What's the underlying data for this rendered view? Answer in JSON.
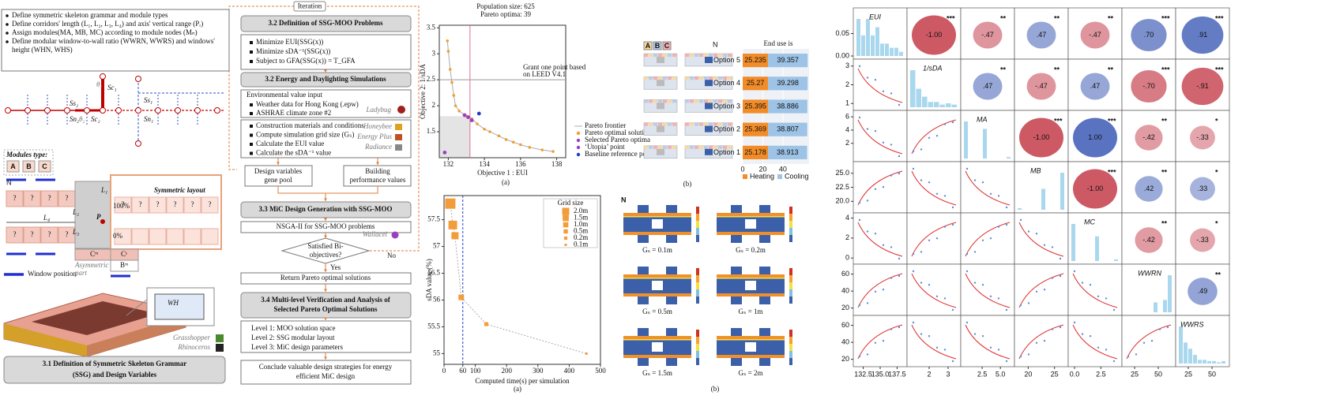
{
  "iteration": "Iteration",
  "left": {
    "bullets": [
      [
        "Define symmetric skeleton grammar and module types"
      ],
      [
        "Define corridors' length (L₁, L₂, L₃, L₄) and axis' vertical range (Pᵣ)"
      ],
      [
        "Assign modules(MA, MB, MC) according to module nodes (Mₙ)"
      ],
      [
        "Define modular window-to-wall ratio (WWRN, WWRS) and windows'",
        "height (WHN, WHS)"
      ]
    ],
    "skeleton_labels": {
      "theta1": "θ₁",
      "theta2": "θ₂",
      "sc1": "Sc₁",
      "sc2": "Sc₂",
      "ss1": "Ss₁",
      "ss2": "Ss₂",
      "sn1": "Sn₁",
      "sn2": "Sn₂"
    },
    "modules_type": "Modules type:",
    "modules": [
      "A",
      "B",
      "C"
    ],
    "north": "N",
    "symmetric_layout": "Symmetric layout",
    "layout_labels": {
      "l1": "L₁",
      "l2": "L₂",
      "l3": "L₃",
      "l4": "L₄",
      "p": "P",
      "top": "100%",
      "bottom": "0%",
      "cm": "Cᵐ",
      "cs": "Cˢ",
      "bm": "Bᵐ"
    },
    "question": "?",
    "asymmetric_part": [
      "Asymmetric",
      "part"
    ],
    "window_position": "Window position",
    "wh": "WH",
    "tools": [
      "Grasshopper",
      "Rhinoceros"
    ],
    "caption": [
      "3.1 Definition of Symmetric Skeleton Grammar",
      "(SSG) and Design Variables"
    ]
  },
  "flow": {
    "h1": "3.2 Definition of SSG-MOO Problems",
    "problem": [
      "Minimize EUI(SSG(x))",
      "Minimize sDA⁻¹(SSG(x))",
      "Subject to GFA(SSG(x)) = T_GFA"
    ],
    "h2": "3.2 Energy and Daylighting Simulations",
    "env_title": "Environmental value input",
    "env": [
      "Weather data for Hong Kong (.epw)",
      "ASHRAE climate zone #2"
    ],
    "env_tool": "Ladybug",
    "sim": [
      "Construction materials and conditions",
      "Compute simulation grid size (Gₛ)",
      "Calculate the EUI value",
      "Calculate the sDA⁻¹ value"
    ],
    "sim_tools": [
      "Honeybee",
      "Energy Plus",
      "Radiance"
    ],
    "gene_pool": [
      "Design variables",
      "gene pool"
    ],
    "performance": [
      "Building",
      "performance values"
    ],
    "h3": "3.3 MiC Design Generation with SSG-MOO",
    "nsga": "NSGA-II for SSG-MOO problems",
    "nsga_tool": "Wallacei",
    "decision": [
      "Satisfied Bi-",
      "objectives?"
    ],
    "yes": "Yes",
    "no": "No",
    "return": "Return Pareto optimal solutions",
    "h4": [
      "3.4 Multi-level Verification and Analysis of",
      "Selected Pareto Optimal Solutions"
    ],
    "levels": [
      "Level 1: MOO solution space",
      "Level 2: SSG modular layout",
      "Level 3: MiC design parameters"
    ],
    "conclude": [
      "Conclude valuable design strategies for energy",
      "efficient MiC design"
    ]
  },
  "pareto": {
    "type": "scatter",
    "title": "Population size: 625",
    "subtitle": "Pareto optima: 39",
    "x_label": "Objective 1 : EUI",
    "y_label": "Objective 2: 1/sDA",
    "xlim": [
      131.5,
      138.5
    ],
    "xticks": [
      132,
      134,
      136,
      138
    ],
    "ylim": [
      1.0,
      3.55
    ],
    "yticks": [
      1.5,
      2,
      2.5,
      3,
      3.5
    ],
    "reference_x": 133.2,
    "reference_y": 2.5,
    "shaded_region": {
      "x": [
        131.5,
        133.2
      ],
      "y": [
        1.0,
        1.8
      ]
    },
    "annotation": [
      "Grant one point based",
      "on LEED V4.1"
    ],
    "series": [
      {
        "name": "Pareto frontier",
        "color": "#aaaaaa",
        "style": "line",
        "x": [
          131.95,
          132.0,
          132.1,
          132.2,
          132.3,
          132.4,
          132.6,
          133.0,
          133.3,
          133.6,
          134.0,
          134.3,
          134.8,
          135.2,
          135.6,
          136.0,
          136.5,
          137.2,
          137.8
        ],
        "y": [
          3.25,
          3.05,
          2.7,
          2.45,
          2.2,
          2.0,
          1.9,
          1.8,
          1.75,
          1.65,
          1.55,
          1.5,
          1.42,
          1.35,
          1.3,
          1.25,
          1.2,
          1.15,
          1.12
        ]
      },
      {
        "name": "Pareto optimal solution",
        "color": "#f0a030",
        "style": "point",
        "x": [
          131.95,
          132.0,
          132.1,
          132.2,
          132.3,
          132.4,
          132.6,
          133.0,
          133.3,
          133.6,
          134.0,
          134.3,
          134.8,
          135.2,
          135.6,
          136.0,
          136.5,
          137.2,
          137.8
        ],
        "y": [
          3.25,
          3.05,
          2.7,
          2.45,
          2.2,
          2.0,
          1.9,
          1.8,
          1.75,
          1.65,
          1.55,
          1.5,
          1.42,
          1.35,
          1.3,
          1.25,
          1.2,
          1.15,
          1.12
        ]
      },
      {
        "name": "Selected Pareto optima",
        "color": "#9b3fbf",
        "style": "point",
        "x": [
          132.9,
          133.1,
          133.3
        ],
        "y": [
          1.82,
          1.78,
          1.72
        ]
      },
      {
        "name": "‘Utopia’ point",
        "color": "#9b3fbf",
        "style": "point",
        "x": [
          131.8
        ],
        "y": [
          1.1
        ]
      },
      {
        "name": "Baseline reference point",
        "color": "#1f3fbf",
        "style": "point",
        "x": [
          133.7
        ],
        "y": [
          1.85
        ]
      }
    ],
    "caption": "(a)"
  },
  "end_use": {
    "type": "bar",
    "title": "End use is",
    "modules": [
      "A",
      "B",
      "C"
    ],
    "north": "N",
    "categories": [
      "Option 5",
      "Option 4",
      "Option 3",
      "Option 2",
      "Option 1"
    ],
    "series": [
      {
        "name": "Heating",
        "color": "#f28c28",
        "values": [
          25.235,
          25.27,
          25.395,
          25.369,
          25.178
        ]
      },
      {
        "name": "Cooling",
        "color": "#9dc3e6",
        "values": [
          39.357,
          39.298,
          38.886,
          38.807,
          38.913
        ]
      }
    ],
    "xlim": [
      0,
      66
    ],
    "xticks": [
      0,
      20,
      40
    ],
    "caption": "(b)"
  },
  "sda_time": {
    "type": "scatter",
    "x_label": "Computed time(s) per simulation",
    "y_label": "sDA value (%)",
    "xlim": [
      0,
      500
    ],
    "xticks": [
      0,
      60,
      100,
      200,
      300,
      400,
      500
    ],
    "ylim": [
      54.8,
      57.95
    ],
    "yticks": [
      55,
      55.5,
      56,
      56.5,
      57,
      57.5
    ],
    "reference_x": 60,
    "legend_title": "Grid size",
    "color": "#f39c3a",
    "labels": [
      "2.0m",
      "1.5m",
      "1.0m",
      "0.5m",
      "0.2m",
      "0.1m"
    ],
    "x": [
      20,
      28,
      35,
      55,
      135,
      455
    ],
    "y": [
      57.8,
      57.4,
      57.2,
      56.05,
      55.55,
      55.0
    ],
    "caption": "(a)"
  },
  "grid_maps": {
    "north": "N",
    "labels": [
      "Gₛ = 0.1m",
      "Gₛ = 0.2m",
      "Gₛ = 0.5m",
      "Gₛ = 1m",
      "Gₛ = 1.5m",
      "Gₛ = 2m"
    ],
    "caption": "(b)"
  },
  "pair_plot": {
    "variables": [
      {
        "name": "EUI",
        "range": [
          131.5,
          138.5
        ],
        "x_ticks": [
          {
            "value": 132.5,
            "label": "132.5"
          },
          {
            "value": 135,
            "label": "135.0"
          },
          {
            "value": 137.5,
            "label": "137.5"
          }
        ],
        "y_range": [
          0,
          0.1
        ],
        "y_ticks": [
          {
            "value": 0,
            "label": "0.00"
          },
          0.05
        ],
        "hist": [
          0.09,
          0.05,
          0.09,
          0.05,
          0.07,
          0.03,
          0.03,
          0.02,
          0.02,
          0.01
        ]
      },
      {
        "name": "1/sDA",
        "range": [
          1.0,
          3.5
        ],
        "x_ticks": [
          2,
          3
        ],
        "y_range": [
          0.8,
          3.2
        ],
        "y_ticks": [
          1,
          2,
          3
        ],
        "hist": [
          28,
          14,
          8,
          4,
          4,
          2,
          3,
          2
        ]
      },
      {
        "name": "MA",
        "range": [
          0,
          6.5
        ],
        "x_ticks": [
          2.5,
          {
            "value": 5,
            "label": "5.0"
          }
        ],
        "y_range": [
          -0.3,
          6.5
        ],
        "y_ticks": [
          2,
          4,
          6
        ],
        "hist": [
          25,
          0,
          0,
          0,
          20,
          0,
          0,
          0,
          0,
          1
        ]
      },
      {
        "name": "MB",
        "range": [
          18,
          27
        ],
        "x_ticks": [
          20,
          25
        ],
        "y_range": [
          18.5,
          26.5
        ],
        "y_ticks": [
          {
            "value": 20,
            "label": "20.0"
          },
          22.5,
          {
            "value": 25,
            "label": "25.0"
          }
        ],
        "hist": [
          1,
          0,
          0,
          0,
          0,
          13,
          0,
          0,
          0,
          23
        ]
      },
      {
        "name": "MC",
        "range": [
          -0.3,
          4.2
        ],
        "x_ticks": [
          {
            "value": 0,
            "label": "0.0"
          },
          2.5
        ],
        "y_range": [
          -0.3,
          4.2
        ],
        "y_ticks": [
          0,
          2,
          4
        ],
        "hist": [
          24,
          0,
          0,
          0,
          0,
          16,
          0,
          0,
          0,
          1
        ]
      },
      {
        "name": "WWRN",
        "range": [
          15,
          65
        ],
        "x_ticks": [
          25,
          50
        ],
        "y_range": [
          15,
          68
        ],
        "y_ticks": [
          20,
          40,
          60
        ],
        "hist": [
          0,
          0,
          0,
          0,
          0,
          0,
          8,
          0,
          10,
          30
        ]
      },
      {
        "name": "WWRS",
        "range": [
          15,
          65
        ],
        "x_ticks": [
          25,
          50
        ],
        "y_range": [
          15,
          68
        ],
        "y_ticks": [
          20,
          40,
          60
        ],
        "hist": [
          30,
          17,
          12,
          7,
          3,
          3,
          2,
          2,
          1,
          2
        ]
      }
    ],
    "correlations": [
      [
        {
          "value": -1.0,
          "label": "-1.00",
          "stars": "***"
        },
        {
          "value": -0.47,
          "label": "-.47",
          "stars": "**"
        },
        {
          "value": 0.47,
          "label": ".47",
          "stars": "**"
        },
        {
          "value": -0.47,
          "label": "-.47",
          "stars": "**"
        },
        {
          "value": 0.7,
          "label": ".70",
          "stars": "***"
        },
        {
          "value": 0.91,
          "label": ".91",
          "stars": "***"
        }
      ],
      [
        {
          "value": 0.47,
          "label": ".47",
          "stars": "**"
        },
        {
          "value": -0.47,
          "label": "-.47",
          "stars": "**"
        },
        {
          "value": 0.47,
          "label": ".47",
          "stars": "**"
        },
        {
          "value": -0.7,
          "label": "-.70",
          "stars": "***"
        },
        {
          "value": -0.91,
          "label": "-.91",
          "stars": "***"
        }
      ],
      [
        {
          "value": -1.0,
          "label": "-1.00",
          "stars": "***"
        },
        {
          "value": 1.0,
          "label": "1.00",
          "stars": "***"
        },
        {
          "value": -0.42,
          "label": "-.42",
          "stars": "**"
        },
        {
          "value": -0.33,
          "label": "-.33",
          "stars": "*"
        }
      ],
      [
        {
          "value": -1.0,
          "label": "-1.00",
          "stars": "***"
        },
        {
          "value": 0.42,
          "label": ".42",
          "stars": "**"
        },
        {
          "value": 0.33,
          "label": ".33",
          "stars": "*"
        }
      ],
      [
        {
          "value": -0.42,
          "label": "-.42",
          "stars": "**"
        },
        {
          "value": -0.33,
          "label": "-.33",
          "stars": "*"
        }
      ],
      [
        {
          "value": 0.49,
          "label": ".49",
          "stars": "**"
        }
      ],
      []
    ]
  }
}
